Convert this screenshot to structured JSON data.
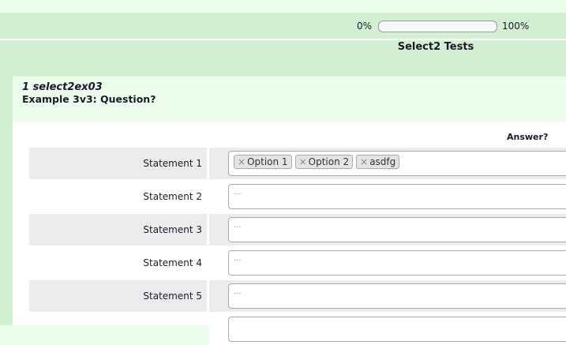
{
  "progress": {
    "min_label": "0%",
    "max_label": "100%",
    "value_percent": 0
  },
  "survey_title": "Select2 Tests",
  "question": {
    "code": "1 select2ex03",
    "text": "Example 3v3: Question?"
  },
  "answer_header": "Answer?",
  "rows": [
    {
      "label": "Statement 1",
      "chips": [
        "Option 1",
        "Option 2",
        "asdfg"
      ],
      "placeholder": ""
    },
    {
      "label": "Statement 2",
      "chips": [],
      "placeholder": "..."
    },
    {
      "label": "Statement 3",
      "chips": [],
      "placeholder": "..."
    },
    {
      "label": "Statement 4",
      "chips": [],
      "placeholder": "..."
    },
    {
      "label": "Statement 5",
      "chips": [],
      "placeholder": "..."
    }
  ]
}
